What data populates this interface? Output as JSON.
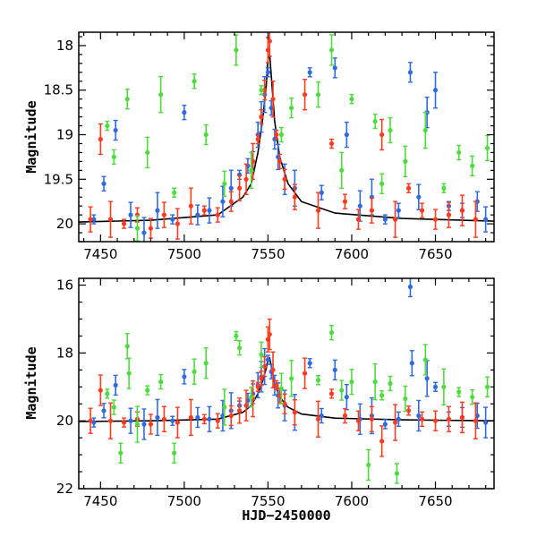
{
  "chart_data": [
    {
      "type": "scatter",
      "title": "",
      "xlabel": "",
      "ylabel": "Magnitude",
      "xlim": [
        7437,
        7685
      ],
      "ylim": [
        20.2,
        17.85
      ],
      "y_inverted": true,
      "xticks": [
        7450,
        7500,
        7550,
        7600,
        7650
      ],
      "xtick_labels": [
        "7450",
        "7500",
        "7550",
        "7600",
        "7650"
      ],
      "yticks": [
        18,
        18.5,
        19,
        19.5,
        20
      ],
      "ytick_labels": [
        "18",
        "18.5",
        "19",
        "19.5",
        "20"
      ],
      "series": [
        {
          "color": "#2f6be0",
          "points": [
            [
              7446,
              19.95
            ],
            [
              7452,
              19.55
            ],
            [
              7459,
              18.95
            ],
            [
              7468,
              19.9
            ],
            [
              7476,
              20.1
            ],
            [
              7484,
              19.85
            ],
            [
              7493,
              19.95
            ],
            [
              7500,
              18.75
            ],
            [
              7508,
              19.9
            ],
            [
              7515,
              19.85
            ],
            [
              7523,
              19.75
            ],
            [
              7528,
              19.6
            ],
            [
              7533,
              19.45
            ],
            [
              7538,
              19.35
            ],
            [
              7541,
              19.3
            ],
            [
              7544,
              19.0
            ],
            [
              7546,
              18.8
            ],
            [
              7548,
              18.55
            ],
            [
              7550,
              18.3
            ],
            [
              7552,
              18.7
            ],
            [
              7554,
              19.05
            ],
            [
              7556,
              19.25
            ],
            [
              7560,
              19.5
            ],
            [
              7566,
              19.6
            ],
            [
              7575,
              18.3
            ],
            [
              7582,
              19.65
            ],
            [
              7590,
              18.25
            ],
            [
              7597,
              19.0
            ],
            [
              7605,
              19.8
            ],
            [
              7612,
              19.7
            ],
            [
              7620,
              19.95
            ],
            [
              7628,
              19.85
            ],
            [
              7635,
              18.3
            ],
            [
              7640,
              19.7
            ],
            [
              7645,
              18.75
            ],
            [
              7650,
              18.5
            ],
            [
              7658,
              19.8
            ],
            [
              7666,
              19.85
            ],
            [
              7675,
              19.75
            ],
            [
              7680,
              19.95
            ]
          ]
        },
        {
          "color": "#ff3b1f",
          "points": [
            [
              7444,
              19.95
            ],
            [
              7450,
              19.05
            ],
            [
              7456,
              19.95
            ],
            [
              7464,
              20.0
            ],
            [
              7472,
              19.9
            ],
            [
              7480,
              20.05
            ],
            [
              7488,
              19.9
            ],
            [
              7496,
              20.0
            ],
            [
              7504,
              19.8
            ],
            [
              7512,
              19.85
            ],
            [
              7520,
              19.9
            ],
            [
              7528,
              19.75
            ],
            [
              7533,
              19.6
            ],
            [
              7537,
              19.5
            ],
            [
              7541,
              19.3
            ],
            [
              7544,
              19.05
            ],
            [
              7546,
              18.8
            ],
            [
              7548,
              18.5
            ],
            [
              7550,
              18.05
            ],
            [
              7551,
              17.95
            ],
            [
              7553,
              18.6
            ],
            [
              7555,
              19.0
            ],
            [
              7557,
              19.3
            ],
            [
              7560,
              19.5
            ],
            [
              7566,
              19.7
            ],
            [
              7572,
              18.55
            ],
            [
              7580,
              19.85
            ],
            [
              7588,
              19.1
            ],
            [
              7596,
              19.75
            ],
            [
              7604,
              19.95
            ],
            [
              7612,
              19.85
            ],
            [
              7618,
              19.0
            ],
            [
              7626,
              19.95
            ],
            [
              7634,
              19.6
            ],
            [
              7642,
              19.85
            ],
            [
              7650,
              19.95
            ],
            [
              7658,
              19.9
            ],
            [
              7666,
              19.85
            ],
            [
              7674,
              19.95
            ]
          ]
        },
        {
          "color": "#4ddc3c",
          "points": [
            [
              7454,
              18.9
            ],
            [
              7458,
              19.25
            ],
            [
              7466,
              18.6
            ],
            [
              7472,
              20.05
            ],
            [
              7478,
              19.2
            ],
            [
              7486,
              18.55
            ],
            [
              7494,
              19.65
            ],
            [
              7506,
              18.4
            ],
            [
              7513,
              19.0
            ],
            [
              7524,
              19.55
            ],
            [
              7531,
              18.05
            ],
            [
              7540,
              19.4
            ],
            [
              7546,
              18.5
            ],
            [
              7558,
              19.0
            ],
            [
              7564,
              18.7
            ],
            [
              7580,
              18.55
            ],
            [
              7588,
              18.05
            ],
            [
              7594,
              19.4
            ],
            [
              7600,
              18.6
            ],
            [
              7614,
              18.85
            ],
            [
              7618,
              19.55
            ],
            [
              7623,
              18.95
            ],
            [
              7632,
              19.3
            ],
            [
              7644,
              18.95
            ],
            [
              7655,
              19.6
            ],
            [
              7664,
              19.2
            ],
            [
              7672,
              19.35
            ],
            [
              7681,
              19.15
            ]
          ]
        }
      ],
      "model_curve": [
        [
          7437,
          19.98
        ],
        [
          7480,
          19.96
        ],
        [
          7520,
          19.9
        ],
        [
          7535,
          19.7
        ],
        [
          7540,
          19.55
        ],
        [
          7544,
          19.2
        ],
        [
          7547,
          18.8
        ],
        [
          7549,
          18.45
        ],
        [
          7550,
          18.15
        ],
        [
          7551,
          18.1
        ],
        [
          7552,
          18.35
        ],
        [
          7554,
          18.85
        ],
        [
          7557,
          19.25
        ],
        [
          7562,
          19.55
        ],
        [
          7570,
          19.75
        ],
        [
          7590,
          19.88
        ],
        [
          7630,
          19.94
        ],
        [
          7685,
          19.97
        ]
      ]
    },
    {
      "type": "scatter",
      "title": "",
      "xlabel": "HJD−2450000",
      "ylabel": "Magnitude",
      "xlim": [
        7437,
        7685
      ],
      "ylim": [
        22,
        15.8
      ],
      "y_inverted": true,
      "xticks": [
        7450,
        7500,
        7550,
        7600,
        7650
      ],
      "xtick_labels": [
        "7450",
        "7500",
        "7550",
        "7600",
        "7650"
      ],
      "yticks": [
        16,
        18,
        20,
        22
      ],
      "ytick_labels": [
        "16",
        "18",
        "20",
        "22"
      ],
      "series": [
        {
          "color": "#2f6be0",
          "points": [
            [
              7446,
              20.05
            ],
            [
              7452,
              19.7
            ],
            [
              7459,
              18.95
            ],
            [
              7468,
              20.0
            ],
            [
              7476,
              20.1
            ],
            [
              7484,
              19.9
            ],
            [
              7493,
              20.0
            ],
            [
              7500,
              18.7
            ],
            [
              7508,
              19.9
            ],
            [
              7515,
              19.95
            ],
            [
              7523,
              19.85
            ],
            [
              7528,
              19.7
            ],
            [
              7533,
              19.55
            ],
            [
              7538,
              19.4
            ],
            [
              7541,
              19.2
            ],
            [
              7544,
              18.95
            ],
            [
              7546,
              18.7
            ],
            [
              7548,
              18.4
            ],
            [
              7550,
              18.2
            ],
            [
              7552,
              18.55
            ],
            [
              7554,
              18.95
            ],
            [
              7556,
              19.25
            ],
            [
              7560,
              19.55
            ],
            [
              7566,
              19.75
            ],
            [
              7575,
              18.3
            ],
            [
              7582,
              19.85
            ],
            [
              7590,
              18.5
            ],
            [
              7597,
              19.3
            ],
            [
              7605,
              19.95
            ],
            [
              7612,
              19.85
            ],
            [
              7620,
              20.1
            ],
            [
              7628,
              19.95
            ],
            [
              7635,
              16.05
            ],
            [
              7636,
              18.3
            ],
            [
              7640,
              19.85
            ],
            [
              7645,
              18.75
            ],
            [
              7650,
              19.0
            ],
            [
              7658,
              19.95
            ],
            [
              7666,
              19.9
            ],
            [
              7675,
              19.85
            ],
            [
              7680,
              20.05
            ]
          ]
        },
        {
          "color": "#ff3b1f",
          "points": [
            [
              7444,
              20.0
            ],
            [
              7450,
              19.1
            ],
            [
              7456,
              20.0
            ],
            [
              7464,
              20.05
            ],
            [
              7472,
              19.95
            ],
            [
              7480,
              20.1
            ],
            [
              7488,
              19.95
            ],
            [
              7496,
              20.05
            ],
            [
              7504,
              19.9
            ],
            [
              7512,
              19.95
            ],
            [
              7520,
              20.0
            ],
            [
              7528,
              19.85
            ],
            [
              7533,
              19.7
            ],
            [
              7537,
              19.55
            ],
            [
              7541,
              19.35
            ],
            [
              7544,
              19.0
            ],
            [
              7546,
              18.75
            ],
            [
              7548,
              18.4
            ],
            [
              7550,
              17.6
            ],
            [
              7551,
              17.45
            ],
            [
              7553,
              18.5
            ],
            [
              7555,
              18.95
            ],
            [
              7557,
              19.25
            ],
            [
              7560,
              19.5
            ],
            [
              7566,
              19.75
            ],
            [
              7572,
              18.6
            ],
            [
              7580,
              19.95
            ],
            [
              7588,
              19.2
            ],
            [
              7596,
              19.85
            ],
            [
              7604,
              20.0
            ],
            [
              7612,
              19.95
            ],
            [
              7618,
              20.6
            ],
            [
              7626,
              20.05
            ],
            [
              7634,
              19.7
            ],
            [
              7642,
              19.95
            ],
            [
              7650,
              20.0
            ],
            [
              7658,
              19.95
            ],
            [
              7666,
              19.9
            ],
            [
              7674,
              20.0
            ]
          ]
        },
        {
          "color": "#4ddc3c",
          "points": [
            [
              7454,
              19.2
            ],
            [
              7458,
              19.6
            ],
            [
              7462,
              20.95
            ],
            [
              7466,
              17.8
            ],
            [
              7467,
              18.6
            ],
            [
              7472,
              20.1
            ],
            [
              7478,
              19.1
            ],
            [
              7486,
              18.85
            ],
            [
              7494,
              20.95
            ],
            [
              7506,
              18.55
            ],
            [
              7513,
              18.3
            ],
            [
              7524,
              19.6
            ],
            [
              7531,
              17.5
            ],
            [
              7533,
              17.85
            ],
            [
              7540,
              19.3
            ],
            [
              7546,
              18.05
            ],
            [
              7558,
              19.05
            ],
            [
              7564,
              18.75
            ],
            [
              7580,
              18.8
            ],
            [
              7588,
              17.4
            ],
            [
              7594,
              19.1
            ],
            [
              7600,
              18.85
            ],
            [
              7610,
              21.3
            ],
            [
              7614,
              18.85
            ],
            [
              7618,
              19.25
            ],
            [
              7623,
              18.9
            ],
            [
              7627,
              21.55
            ],
            [
              7632,
              19.35
            ],
            [
              7644,
              18.2
            ],
            [
              7655,
              19.0
            ],
            [
              7664,
              19.15
            ],
            [
              7672,
              19.3
            ],
            [
              7681,
              19.0
            ]
          ]
        }
      ],
      "model_curve": [
        [
          7437,
          20.02
        ],
        [
          7480,
          20.0
        ],
        [
          7520,
          19.95
        ],
        [
          7535,
          19.75
        ],
        [
          7540,
          19.55
        ],
        [
          7544,
          19.2
        ],
        [
          7547,
          18.8
        ],
        [
          7549,
          18.45
        ],
        [
          7550,
          18.2
        ],
        [
          7551,
          18.15
        ],
        [
          7552,
          18.4
        ],
        [
          7554,
          18.9
        ],
        [
          7557,
          19.3
        ],
        [
          7562,
          19.6
        ],
        [
          7570,
          19.8
        ],
        [
          7590,
          19.92
        ],
        [
          7630,
          19.97
        ],
        [
          7685,
          20.0
        ]
      ]
    }
  ]
}
